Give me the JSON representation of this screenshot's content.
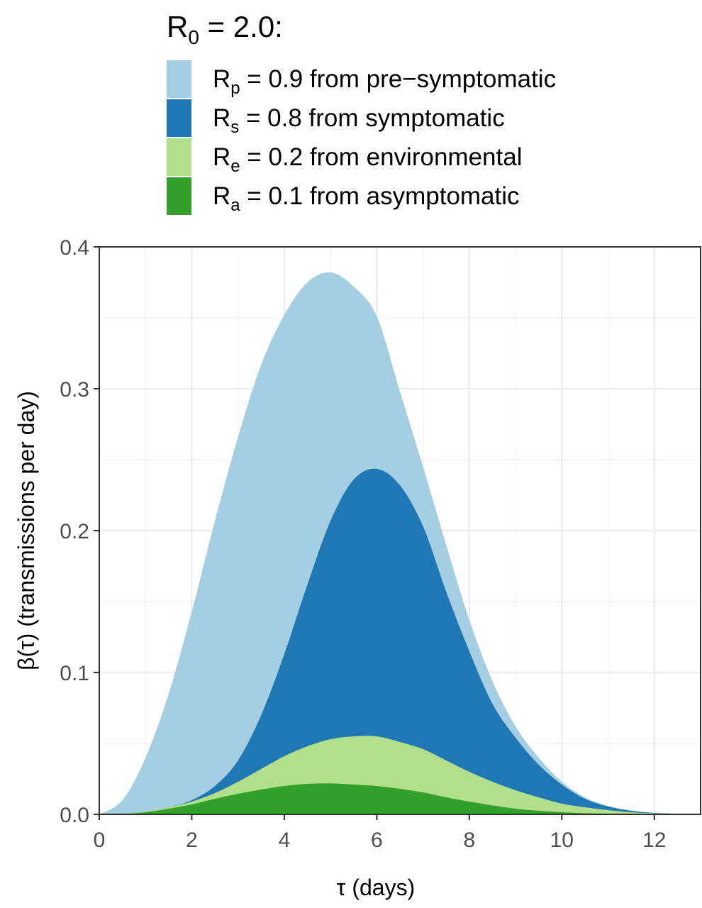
{
  "chart_data": {
    "type": "area",
    "stacked": true,
    "legend": {
      "title": {
        "main": "R",
        "sub": "0",
        "rest": " = 2.0:"
      },
      "placement": "top",
      "entries": [
        {
          "main": "R",
          "sub": "p",
          "rest": " = 0.9 from pre−symptomatic"
        },
        {
          "main": "R",
          "sub": "s",
          "rest": " = 0.8 from symptomatic"
        },
        {
          "main": "R",
          "sub": "e",
          "rest": " = 0.2 from environmental"
        },
        {
          "main": "R",
          "sub": "a",
          "rest": " = 0.1 from asymptomatic"
        }
      ]
    },
    "xlabel": "τ (days)",
    "ylabel": "β(τ)  (transmissions per day)",
    "xlim": [
      0,
      13
    ],
    "ylim": [
      0,
      0.4
    ],
    "x_ticks": [
      "0",
      "2",
      "4",
      "6",
      "8",
      "10",
      "12"
    ],
    "y_ticks": [
      "0.0",
      "0.1",
      "0.2",
      "0.3",
      "0.4"
    ],
    "grid": true,
    "x": [
      0,
      0.5,
      1,
      1.5,
      2,
      2.5,
      3,
      3.5,
      4,
      4.5,
      5,
      5.5,
      6,
      6.5,
      7,
      7.5,
      8,
      8.5,
      9,
      9.5,
      10,
      10.5,
      11,
      11.5,
      12,
      12.5,
      13
    ],
    "series": [
      {
        "key": "pre-symptomatic",
        "color": "#a6cee3",
        "values": [
          0,
          0.0095,
          0.038,
          0.08,
          0.133,
          0.187,
          0.228,
          0.247,
          0.239,
          0.213,
          0.175,
          0.136,
          0.1075,
          0.066,
          0.042,
          0.033,
          0.022,
          0.016,
          0.008,
          0.005,
          0.002,
          0.001,
          0.0005,
          0.0003,
          0.0001,
          0,
          0
        ]
      },
      {
        "key": "symptomatic",
        "color": "#1f78b4",
        "values": [
          0,
          0,
          0,
          0,
          0.001,
          0.005,
          0.015,
          0.038,
          0.072,
          0.114,
          0.154,
          0.181,
          0.1885,
          0.181,
          0.157,
          0.119,
          0.085,
          0.055,
          0.037,
          0.023,
          0.0135,
          0.006,
          0.0025,
          0.001,
          0.0002,
          0.0001,
          0
        ]
      },
      {
        "key": "environmental",
        "color": "#b2df8a",
        "values": [
          0,
          0.0002,
          0.0005,
          0.001,
          0.002,
          0.004,
          0.0085,
          0.0145,
          0.021,
          0.0265,
          0.0312,
          0.034,
          0.035,
          0.033,
          0.0305,
          0.026,
          0.021,
          0.0167,
          0.013,
          0.0095,
          0.006,
          0.0042,
          0.0025,
          0.0013,
          0.0007,
          0.0003,
          0
        ]
      },
      {
        "key": "asymptomatic",
        "color": "#33a02c",
        "values": [
          0,
          0.0003,
          0.0015,
          0.004,
          0.007,
          0.011,
          0.0145,
          0.0175,
          0.02,
          0.0215,
          0.0218,
          0.021,
          0.02,
          0.018,
          0.0155,
          0.012,
          0.009,
          0.0063,
          0.004,
          0.0025,
          0.0015,
          0.0008,
          0.0005,
          0.0002,
          0.0001,
          0,
          0
        ]
      }
    ]
  }
}
